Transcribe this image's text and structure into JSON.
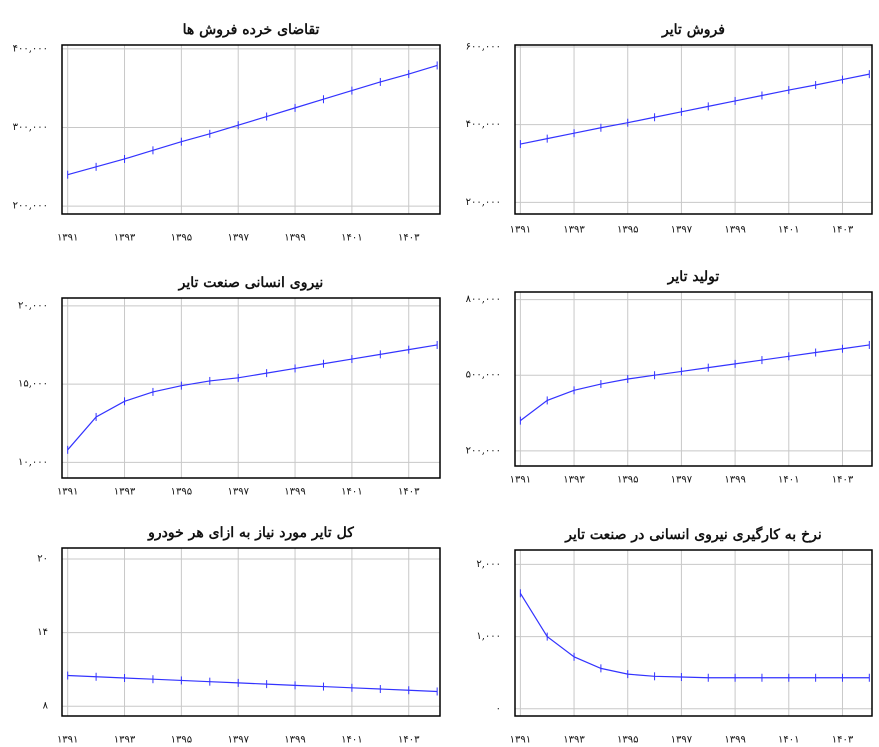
{
  "chart_data": [
    {
      "type": "line",
      "title": "تقاضای خرده فروش ها",
      "x": [
        1391,
        1392,
        1393,
        1394,
        1395,
        1396,
        1397,
        1398,
        1399,
        1400,
        1401,
        1402,
        1403,
        1404
      ],
      "series": [
        {
          "color": "#3333ff",
          "values": [
            240000,
            250000,
            260000,
            271000,
            282000,
            292000,
            303000,
            314000,
            325000,
            336000,
            347000,
            358000,
            368000,
            379000
          ]
        }
      ],
      "xlim": [
        1390.8,
        1404.1
      ],
      "ylim": [
        190000,
        405000
      ],
      "xticks": [
        {
          "value": 1391,
          "label": "۱۳۹۱"
        },
        {
          "value": 1393,
          "label": "۱۳۹۳"
        },
        {
          "value": 1395,
          "label": "۱۳۹۵"
        },
        {
          "value": 1397,
          "label": "۱۳۹۷"
        },
        {
          "value": 1399,
          "label": "۱۳۹۹"
        },
        {
          "value": 1401,
          "label": "۱۴۰۱"
        },
        {
          "value": 1403,
          "label": "۱۴۰۳"
        }
      ],
      "yticks": [
        {
          "value": 200000,
          "label": "۲۰۰,۰۰۰"
        },
        {
          "value": 300000,
          "label": "۳۰۰,۰۰۰"
        },
        {
          "value": 400000,
          "label": "۴۰۰,۰۰۰"
        }
      ],
      "grid": true
    },
    {
      "type": "line",
      "title": "فروش تایر",
      "x": [
        1391,
        1392,
        1393,
        1394,
        1395,
        1396,
        1397,
        1398,
        1399,
        1400,
        1401,
        1402,
        1403,
        1404
      ],
      "series": [
        {
          "color": "#3333ff",
          "values": [
            350000,
            364000,
            378000,
            392000,
            405000,
            419000,
            433000,
            447000,
            461000,
            475000,
            489000,
            502000,
            516000,
            530000
          ]
        }
      ],
      "xlim": [
        1390.8,
        1404.1
      ],
      "ylim": [
        170000,
        605000
      ],
      "xticks": [
        {
          "value": 1391,
          "label": "۱۳۹۱"
        },
        {
          "value": 1393,
          "label": "۱۳۹۳"
        },
        {
          "value": 1395,
          "label": "۱۳۹۵"
        },
        {
          "value": 1397,
          "label": "۱۳۹۷"
        },
        {
          "value": 1399,
          "label": "۱۳۹۹"
        },
        {
          "value": 1401,
          "label": "۱۴۰۱"
        },
        {
          "value": 1403,
          "label": "۱۴۰۳"
        }
      ],
      "yticks": [
        {
          "value": 200000,
          "label": "۲۰۰,۰۰۰"
        },
        {
          "value": 400000,
          "label": "۴۰۰,۰۰۰"
        },
        {
          "value": 600000,
          "label": "۶۰۰,۰۰۰"
        }
      ],
      "grid": true
    },
    {
      "type": "line",
      "title": "نیروی انسانی صنعت تایر",
      "x": [
        1391,
        1392,
        1393,
        1394,
        1395,
        1396,
        1397,
        1398,
        1399,
        1400,
        1401,
        1402,
        1403,
        1404
      ],
      "series": [
        {
          "color": "#3333ff",
          "values": [
            10800,
            12900,
            13900,
            14500,
            14900,
            15200,
            15400,
            15700,
            16000,
            16300,
            16600,
            16900,
            17200,
            17500
          ]
        }
      ],
      "xlim": [
        1390.8,
        1404.1
      ],
      "ylim": [
        9000,
        20500
      ],
      "xticks": [
        {
          "value": 1391,
          "label": "۱۳۹۱"
        },
        {
          "value": 1393,
          "label": "۱۳۹۳"
        },
        {
          "value": 1395,
          "label": "۱۳۹۵"
        },
        {
          "value": 1397,
          "label": "۱۳۹۷"
        },
        {
          "value": 1399,
          "label": "۱۳۹۹"
        },
        {
          "value": 1401,
          "label": "۱۴۰۱"
        },
        {
          "value": 1403,
          "label": "۱۴۰۳"
        }
      ],
      "yticks": [
        {
          "value": 10000,
          "label": "۱۰,۰۰۰"
        },
        {
          "value": 15000,
          "label": "۱۵,۰۰۰"
        },
        {
          "value": 20000,
          "label": "۲۰,۰۰۰"
        }
      ],
      "grid": true
    },
    {
      "type": "line",
      "title": "تولید تایر",
      "x": [
        1391,
        1392,
        1393,
        1394,
        1395,
        1396,
        1397,
        1398,
        1399,
        1400,
        1401,
        1402,
        1403,
        1404
      ],
      "series": [
        {
          "color": "#3333ff",
          "values": [
            320000,
            400000,
            440000,
            465000,
            485000,
            500000,
            515000,
            530000,
            545000,
            560000,
            575000,
            590000,
            605000,
            620000
          ]
        }
      ],
      "xlim": [
        1390.8,
        1404.1
      ],
      "ylim": [
        140000,
        830000
      ],
      "xticks": [
        {
          "value": 1391,
          "label": "۱۳۹۱"
        },
        {
          "value": 1393,
          "label": "۱۳۹۳"
        },
        {
          "value": 1395,
          "label": "۱۳۹۵"
        },
        {
          "value": 1397,
          "label": "۱۳۹۷"
        },
        {
          "value": 1399,
          "label": "۱۳۹۹"
        },
        {
          "value": 1401,
          "label": "۱۴۰۱"
        },
        {
          "value": 1403,
          "label": "۱۴۰۳"
        }
      ],
      "yticks": [
        {
          "value": 200000,
          "label": "۲۰۰,۰۰۰"
        },
        {
          "value": 500000,
          "label": "۵۰۰,۰۰۰"
        },
        {
          "value": 800000,
          "label": "۸۰۰,۰۰۰"
        }
      ],
      "grid": true
    },
    {
      "type": "line",
      "title": "کل تایر مورد نیاز به ازای هر خودرو",
      "x": [
        1391,
        1392,
        1393,
        1394,
        1395,
        1396,
        1397,
        1398,
        1399,
        1400,
        1401,
        1402,
        1403,
        1404
      ],
      "series": [
        {
          "color": "#3333ff",
          "values": [
            10.5,
            10.4,
            10.3,
            10.2,
            10.1,
            10.0,
            9.9,
            9.8,
            9.7,
            9.6,
            9.5,
            9.4,
            9.3,
            9.2
          ]
        }
      ],
      "xlim": [
        1390.8,
        1404.1
      ],
      "ylim": [
        7.2,
        20.9
      ],
      "xticks": [
        {
          "value": 1391,
          "label": "۱۳۹۱"
        },
        {
          "value": 1393,
          "label": "۱۳۹۳"
        },
        {
          "value": 1395,
          "label": "۱۳۹۵"
        },
        {
          "value": 1397,
          "label": "۱۳۹۷"
        },
        {
          "value": 1399,
          "label": "۱۳۹۹"
        },
        {
          "value": 1401,
          "label": "۱۴۰۱"
        },
        {
          "value": 1403,
          "label": "۱۴۰۳"
        }
      ],
      "yticks": [
        {
          "value": 8,
          "label": "۸"
        },
        {
          "value": 14,
          "label": "۱۴"
        },
        {
          "value": 20,
          "label": "۲۰"
        }
      ],
      "grid": true
    },
    {
      "type": "line",
      "title": "نرخ به کارگیری نیروی انسانی در صنعت تایر",
      "x": [
        1391,
        1392,
        1393,
        1394,
        1395,
        1396,
        1397,
        1398,
        1399,
        1400,
        1401,
        1402,
        1403,
        1404
      ],
      "series": [
        {
          "color": "#3333ff",
          "values": [
            1600,
            1000,
            720,
            560,
            480,
            450,
            440,
            430,
            430,
            430,
            430,
            430,
            430,
            430
          ]
        }
      ],
      "xlim": [
        1390.8,
        1404.1
      ],
      "ylim": [
        -100,
        2200
      ],
      "xticks": [
        {
          "value": 1391,
          "label": "۱۳۹۱"
        },
        {
          "value": 1393,
          "label": "۱۳۹۳"
        },
        {
          "value": 1395,
          "label": "۱۳۹۵"
        },
        {
          "value": 1397,
          "label": "۱۳۹۷"
        },
        {
          "value": 1399,
          "label": "۱۳۹۹"
        },
        {
          "value": 1401,
          "label": "۱۴۰۱"
        },
        {
          "value": 1403,
          "label": "۱۴۰۳"
        }
      ],
      "yticks": [
        {
          "value": 0,
          "label": "۰"
        },
        {
          "value": 1000,
          "label": "۱,۰۰۰"
        },
        {
          "value": 2000,
          "label": "۲,۰۰۰"
        }
      ],
      "grid": true
    }
  ]
}
